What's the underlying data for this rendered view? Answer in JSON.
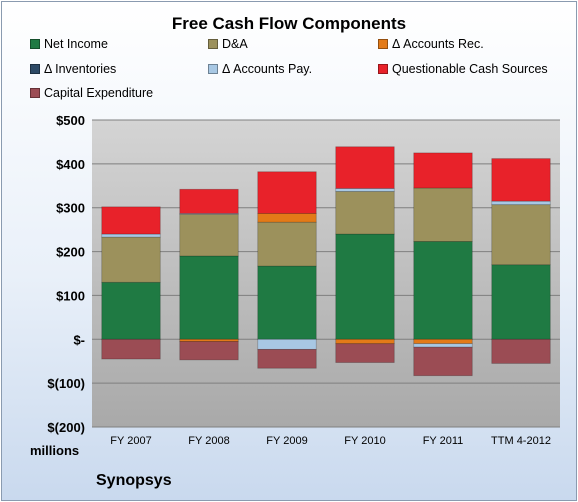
{
  "chart_data": {
    "type": "bar",
    "stacked": true,
    "title": "Free Cash Flow Components",
    "categories": [
      "FY 2007",
      "FY 2008",
      "FY 2009",
      "FY 2010",
      "FY 2011",
      "TTM 4-2012"
    ],
    "ylabel": "millions",
    "ylim": [
      -200,
      500
    ],
    "yticks": [
      500,
      400,
      300,
      200,
      100,
      0,
      -100,
      -200
    ],
    "ytick_labels": [
      "$500",
      "$400",
      "$300",
      "$200",
      "$100",
      "$-",
      "$(100)",
      "$(200)"
    ],
    "grid": true,
    "legend_position": "top",
    "series": [
      {
        "name": "Net Income",
        "color": "#1f7a43",
        "values": [
          130,
          190,
          167,
          240,
          223,
          170
        ]
      },
      {
        "name": "D&A",
        "color": "#9c915c",
        "values": [
          103,
          95,
          100,
          97,
          122,
          137
        ]
      },
      {
        "name": "Δ Accounts Rec.",
        "color": "#e37a18",
        "values": [
          0,
          -5,
          20,
          -10,
          -10,
          0
        ]
      },
      {
        "name": "Δ Inventories",
        "color": "#2d4a66",
        "values": [
          0,
          0,
          0,
          0,
          0,
          0
        ]
      },
      {
        "name": "Δ Accounts Pay.",
        "color": "#a8c8e4",
        "values": [
          7,
          2,
          -23,
          7,
          -8,
          8
        ]
      },
      {
        "name": "Questionable Cash Sources",
        "color": "#e8222a",
        "values": [
          62,
          55,
          95,
          95,
          80,
          97
        ]
      },
      {
        "name": "Capital Expenditure",
        "color": "#9b4c54",
        "values": [
          -45,
          -42,
          -43,
          -43,
          -65,
          -55
        ]
      }
    ]
  },
  "footer": {
    "company": "Synopsys"
  }
}
